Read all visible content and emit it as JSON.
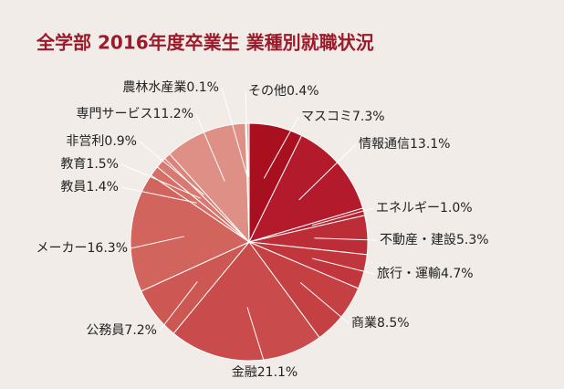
{
  "chart_data": {
    "type": "pie",
    "title": "全学部 2016年度卒業生 業種別就職状況",
    "categories": [
      "マスコミ",
      "情報通信",
      "エネルギー",
      "不動産・建設",
      "旅行・運輸",
      "商業",
      "金融",
      "公務員",
      "メーカー",
      "教員",
      "教育",
      "非営利",
      "専門サービス",
      "農林水産業",
      "その他"
    ],
    "values": [
      7.3,
      13.1,
      1.0,
      5.3,
      4.7,
      8.5,
      21.1,
      7.2,
      16.3,
      1.4,
      1.5,
      0.9,
      11.2,
      0.1,
      0.4
    ],
    "value_labels": [
      "7.3%",
      "13.1%",
      "1.0%",
      "5.3%",
      "4.7%",
      "8.5%",
      "21.1%",
      "7.2%",
      "16.3%",
      "1.4%",
      "1.5%",
      "0.9%",
      "11.2%",
      "0.1%",
      "0.4%"
    ],
    "colors": [
      "#a8101f",
      "#b31a2b",
      "#b92431",
      "#bd2d37",
      "#c1363d",
      "#c54043",
      "#c94b4b",
      "#cd5753",
      "#d1645d",
      "#d56f67",
      "#d87a71",
      "#db847b",
      "#de9086",
      "#e29b91",
      "#e5a59b"
    ]
  }
}
